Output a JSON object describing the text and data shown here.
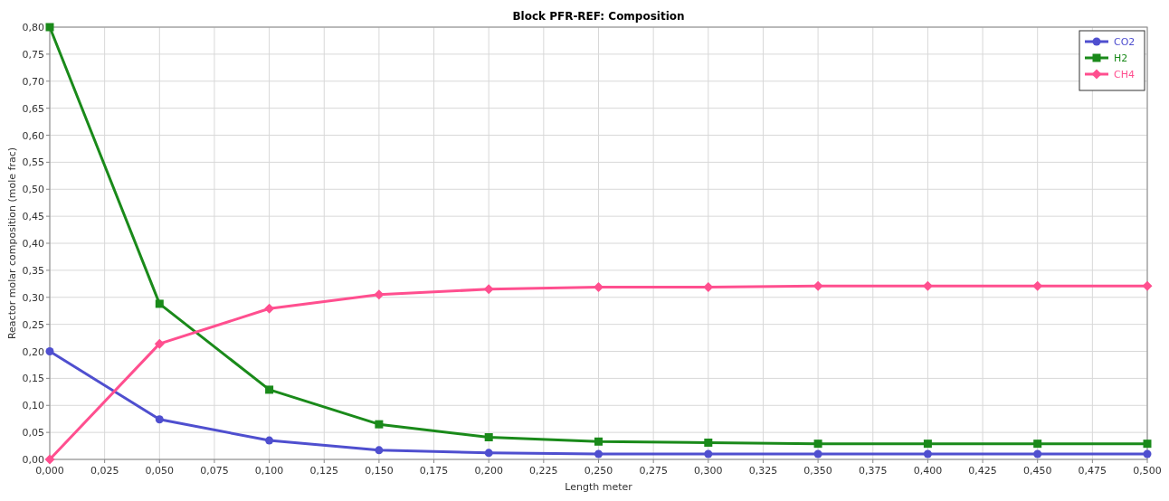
{
  "chart_data": {
    "type": "line",
    "title": "Block PFR-REF: Composition",
    "xlabel": "Length meter",
    "ylabel": "Reactor molar composition (mole frac)",
    "x": [
      0,
      0.05,
      0.1,
      0.15,
      0.2,
      0.25,
      0.3,
      0.35,
      0.4,
      0.45,
      0.5
    ],
    "series": [
      {
        "name": "CO2",
        "color": "#4f4fcf",
        "marker": "circle",
        "values": [
          0.2,
          0.074,
          0.035,
          0.017,
          0.012,
          0.01,
          0.01,
          0.01,
          0.01,
          0.01,
          0.01
        ]
      },
      {
        "name": "H2",
        "color": "#1a8a1a",
        "marker": "square",
        "values": [
          0.8,
          0.288,
          0.129,
          0.065,
          0.041,
          0.033,
          0.031,
          0.029,
          0.029,
          0.029,
          0.029
        ]
      },
      {
        "name": "CH4",
        "color": "#ff4f8f",
        "marker": "diamond",
        "values": [
          0,
          0.214,
          0.279,
          0.305,
          0.315,
          0.319,
          0.319,
          0.321,
          0.321,
          0.321,
          0.321
        ]
      }
    ],
    "xlim": [
      0,
      0.5
    ],
    "ylim": [
      0,
      0.8
    ],
    "xticks": [
      {
        "value": 0,
        "label": "0,000"
      },
      {
        "value": 0.025,
        "label": "0,025"
      },
      {
        "value": 0.05,
        "label": "0,050"
      },
      {
        "value": 0.075,
        "label": "0,075"
      },
      {
        "value": 0.1,
        "label": "0,100"
      },
      {
        "value": 0.125,
        "label": "0,125"
      },
      {
        "value": 0.15,
        "label": "0,150"
      },
      {
        "value": 0.175,
        "label": "0,175"
      },
      {
        "value": 0.2,
        "label": "0,200"
      },
      {
        "value": 0.225,
        "label": "0,225"
      },
      {
        "value": 0.25,
        "label": "0,250"
      },
      {
        "value": 0.275,
        "label": "0,275"
      },
      {
        "value": 0.3,
        "label": "0,300"
      },
      {
        "value": 0.325,
        "label": "0,325"
      },
      {
        "value": 0.35,
        "label": "0,350"
      },
      {
        "value": 0.375,
        "label": "0,375"
      },
      {
        "value": 0.4,
        "label": "0,400"
      },
      {
        "value": 0.425,
        "label": "0,425"
      },
      {
        "value": 0.45,
        "label": "0,450"
      },
      {
        "value": 0.475,
        "label": "0,475"
      },
      {
        "value": 0.5,
        "label": "0,500"
      }
    ],
    "yticks": [
      {
        "value": 0,
        "label": "0,00"
      },
      {
        "value": 0.05,
        "label": "0,05"
      },
      {
        "value": 0.1,
        "label": "0,10"
      },
      {
        "value": 0.15,
        "label": "0,15"
      },
      {
        "value": 0.2,
        "label": "0,20"
      },
      {
        "value": 0.25,
        "label": "0,25"
      },
      {
        "value": 0.3,
        "label": "0,30"
      },
      {
        "value": 0.35,
        "label": "0,35"
      },
      {
        "value": 0.4,
        "label": "0,40"
      },
      {
        "value": 0.45,
        "label": "0,45"
      },
      {
        "value": 0.5,
        "label": "0,50"
      },
      {
        "value": 0.55,
        "label": "0,55"
      },
      {
        "value": 0.6,
        "label": "0,60"
      },
      {
        "value": 0.65,
        "label": "0,65"
      },
      {
        "value": 0.7,
        "label": "0,70"
      },
      {
        "value": 0.75,
        "label": "0,75"
      },
      {
        "value": 0.8,
        "label": "0,80"
      }
    ],
    "grid": true,
    "legend": "top right",
    "line_style": "solid"
  }
}
